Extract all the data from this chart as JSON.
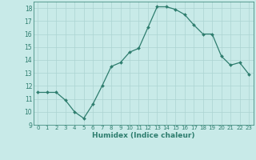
{
  "x": [
    0,
    1,
    2,
    3,
    4,
    5,
    6,
    7,
    8,
    9,
    10,
    11,
    12,
    13,
    14,
    15,
    16,
    17,
    18,
    19,
    20,
    21,
    22,
    23
  ],
  "y": [
    11.5,
    11.5,
    11.5,
    10.9,
    10.0,
    9.5,
    10.6,
    12.0,
    13.5,
    13.8,
    14.6,
    14.9,
    16.5,
    18.1,
    18.1,
    17.9,
    17.5,
    16.7,
    16.0,
    16.0,
    14.3,
    13.6,
    13.8,
    12.9
  ],
  "line_color": "#2e7d6e",
  "marker_color": "#2e7d6e",
  "bg_color": "#c8eae8",
  "grid_color": "#acd4d2",
  "xlabel": "Humidex (Indice chaleur)",
  "xlim": [
    -0.5,
    23.5
  ],
  "ylim": [
    9,
    18.5
  ],
  "yticks": [
    9,
    10,
    11,
    12,
    13,
    14,
    15,
    16,
    17,
    18
  ],
  "xticks": [
    0,
    1,
    2,
    3,
    4,
    5,
    6,
    7,
    8,
    9,
    10,
    11,
    12,
    13,
    14,
    15,
    16,
    17,
    18,
    19,
    20,
    21,
    22,
    23
  ]
}
